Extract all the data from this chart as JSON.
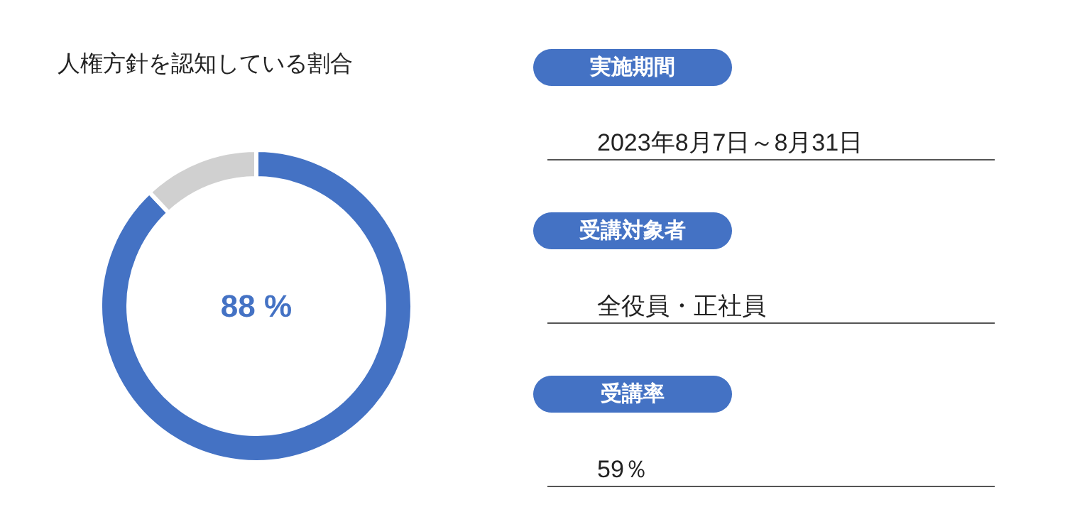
{
  "chart_data": [
    {
      "type": "donut",
      "title": "人権方針を認知している割合",
      "categories": [
        null,
        null
      ],
      "values": [
        88,
        12
      ],
      "colors": [
        "#4472c4",
        "#d0d0d0"
      ],
      "value_labels": [
        "88 %",
        null
      ]
    },
    {
      "type": "other",
      "color": "#4472c4",
      "annotations": [
        "実施期間",
        "2023年8月7日～8月31日",
        "受講対象者",
        "全役員・正社員",
        "受講率",
        "59％"
      ]
    }
  ]
}
